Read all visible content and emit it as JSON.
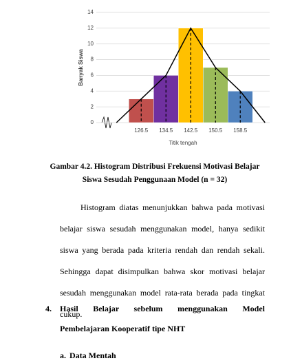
{
  "chart_data": {
    "type": "histogram",
    "y_label": "Banyak Siswa",
    "x_label": "Titik tengah",
    "bins": [
      122.5,
      130.5,
      138.5,
      146.5,
      154.5,
      162.5
    ],
    "values": [
      3,
      6,
      12,
      7,
      4
    ],
    "colors": [
      "#c0504d",
      "#7030a0",
      "#ffc000",
      "#9bbb59",
      "#4f81bd"
    ],
    "xticks": [
      126.5,
      134.5,
      142.5,
      150.5,
      158.5
    ],
    "xlim": [
      112,
      168
    ],
    "ylim": [
      0,
      14
    ],
    "yticks": [
      0,
      2,
      4,
      6,
      8,
      10,
      12,
      14
    ],
    "grid": true,
    "polygon": {
      "x": [
        118.5,
        126.5,
        134.5,
        142.5,
        150.5,
        158.5,
        166.5
      ],
      "values": [
        0,
        3,
        6,
        12,
        7,
        4,
        0
      ],
      "color": "#000000"
    }
  },
  "caption": [
    "Gambar 4.2. Histogram Distribusi Frekuensi Motivasi Belajar",
    "Siswa Sesudah Penggunaan Model (n = 32)"
  ],
  "paragraph": "Histogram diatas menunjukkan bahwa pada motivasi belajar siswa sesudah menggunakan model, hanya sedikit siswa yang berada pada kriteria rendah dan rendah sekali. Sehingga dapat disimpulkan bahwa skor motivasi belajar sesudah menggunakan model rata-rata berada pada tingkat cukup.",
  "section": {
    "number": "4.",
    "title": "Hasil Belajar sebelum menggunakan Model Pembelajaran Kooperatif tipe NHT"
  },
  "subsection": {
    "number": "a.",
    "title": "Data Mentah"
  }
}
